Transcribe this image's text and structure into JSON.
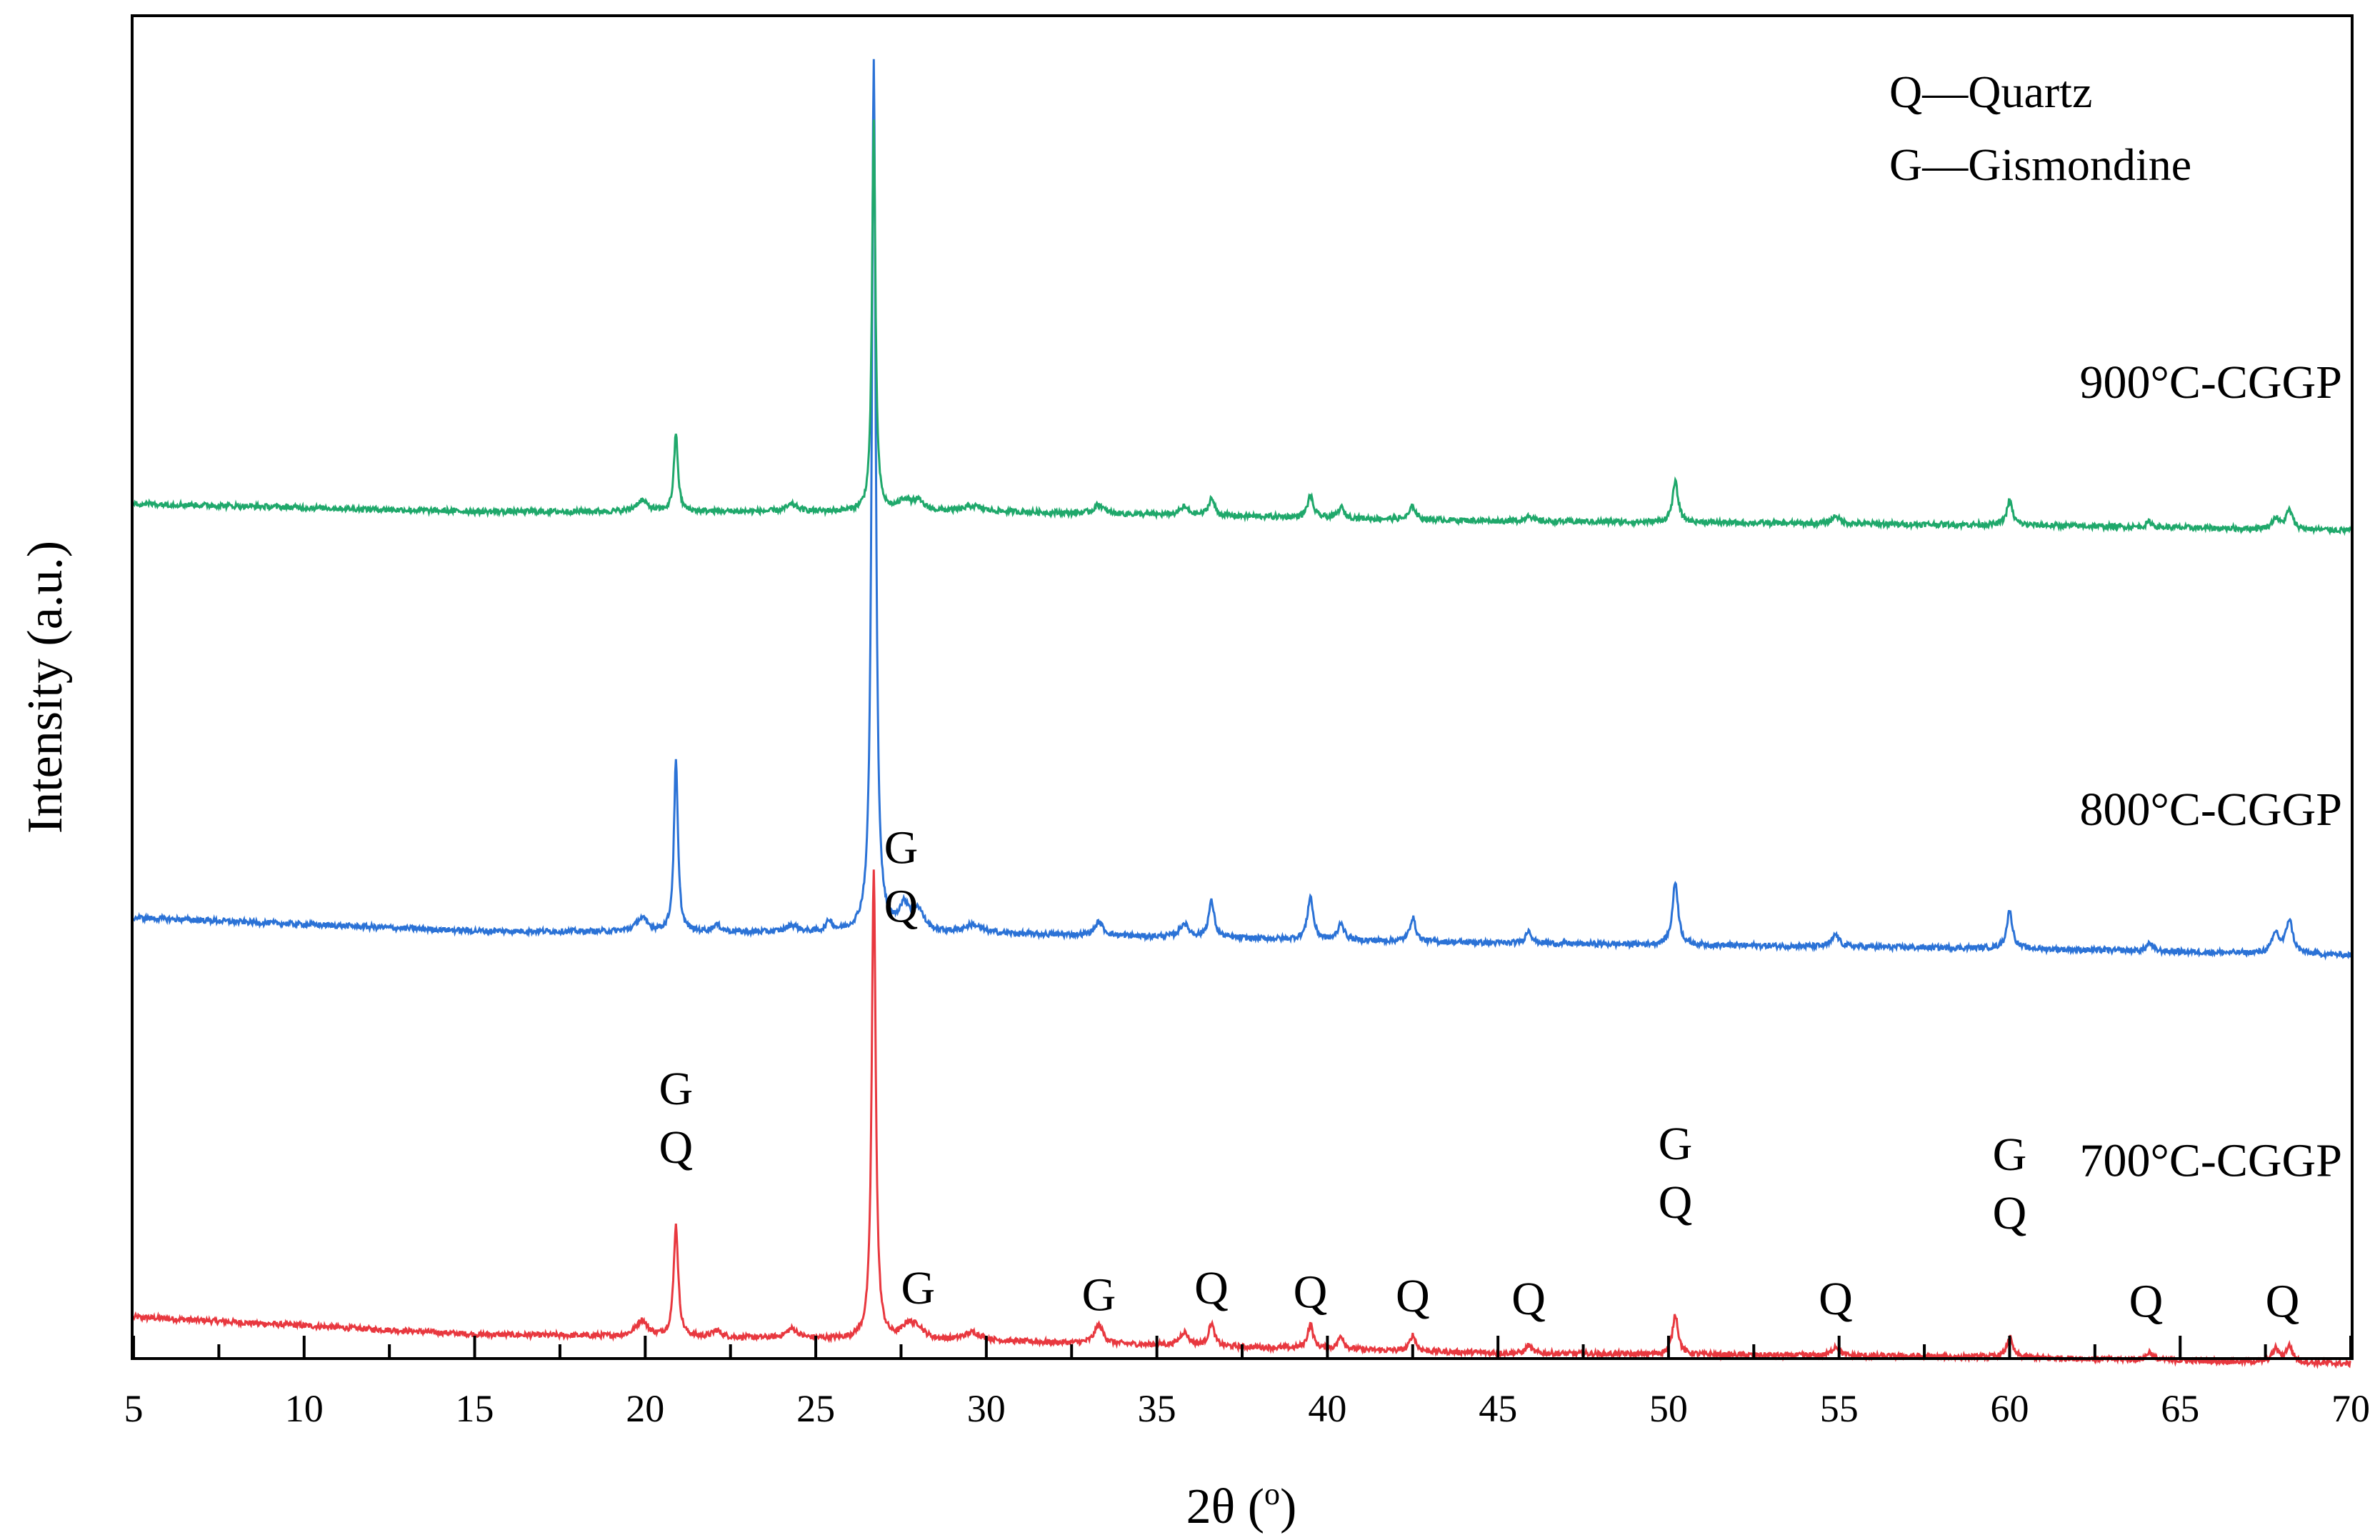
{
  "chart_data": {
    "type": "line",
    "title": "",
    "xlabel": "2θ (",
    "xlabel_sup": "o",
    "xlabel_close": ")",
    "ylabel": "Intensity (a.u.)",
    "xlim": [
      5,
      70
    ],
    "x_ticks": [
      5,
      10,
      15,
      20,
      25,
      30,
      35,
      40,
      45,
      50,
      55,
      60,
      65,
      70
    ],
    "x_tick_labels": [
      "5",
      "10",
      "15",
      "20",
      "25",
      "30",
      "35",
      "40",
      "45",
      "50",
      "55",
      "60",
      "65",
      "70"
    ],
    "y_ticks_shown": false,
    "grid": false,
    "legend": {
      "placement": "top-right",
      "entries": [
        "Q—Quartz",
        "G—Gismondine"
      ]
    },
    "series": [
      {
        "name": "700°C-CGGP",
        "color": "#e8383f",
        "baseline": [
          [
            5,
            0.03
          ],
          [
            15,
            0.017
          ],
          [
            30,
            0.012
          ],
          [
            45,
            0.003
          ],
          [
            60,
            0.0
          ],
          [
            70,
            -0.005
          ]
        ],
        "peaks": [
          [
            19.9,
            0.012,
            0.2
          ],
          [
            20.9,
            0.083,
            0.08
          ],
          [
            22.1,
            0.005,
            0.15
          ],
          [
            24.3,
            0.007,
            0.2
          ],
          [
            26.7,
            0.35,
            0.07
          ],
          [
            27.7,
            0.01,
            0.2
          ],
          [
            28.0,
            0.008,
            0.2
          ],
          [
            29.6,
            0.006,
            0.3
          ],
          [
            33.3,
            0.014,
            0.15
          ],
          [
            35.8,
            0.01,
            0.15
          ],
          [
            36.6,
            0.017,
            0.1
          ],
          [
            39.5,
            0.018,
            0.1
          ],
          [
            40.4,
            0.01,
            0.1
          ],
          [
            42.5,
            0.012,
            0.1
          ],
          [
            45.9,
            0.006,
            0.1
          ],
          [
            50.2,
            0.03,
            0.1
          ],
          [
            54.9,
            0.007,
            0.12
          ],
          [
            60.0,
            0.015,
            0.1
          ],
          [
            64.1,
            0.006,
            0.1
          ],
          [
            67.8,
            0.01,
            0.12
          ],
          [
            68.2,
            0.012,
            0.12
          ]
        ]
      },
      {
        "name": "800°C-CGGP",
        "color": "#2b72d6",
        "baseline": [
          [
            5,
            0.328
          ],
          [
            15,
            0.318
          ],
          [
            30,
            0.316
          ],
          [
            45,
            0.309
          ],
          [
            60,
            0.305
          ],
          [
            70,
            0.3
          ]
        ],
        "peaks": [
          [
            19.9,
            0.01,
            0.2
          ],
          [
            20.9,
            0.127,
            0.07
          ],
          [
            22.1,
            0.005,
            0.15
          ],
          [
            24.3,
            0.005,
            0.2
          ],
          [
            25.4,
            0.008,
            0.1
          ],
          [
            26.7,
            0.65,
            0.07
          ],
          [
            27.6,
            0.018,
            0.2
          ],
          [
            28.0,
            0.015,
            0.2
          ],
          [
            29.6,
            0.006,
            0.3
          ],
          [
            33.3,
            0.01,
            0.15
          ],
          [
            35.8,
            0.01,
            0.15
          ],
          [
            36.6,
            0.027,
            0.1
          ],
          [
            39.5,
            0.032,
            0.1
          ],
          [
            40.4,
            0.013,
            0.1
          ],
          [
            42.5,
            0.018,
            0.1
          ],
          [
            45.9,
            0.01,
            0.1
          ],
          [
            50.2,
            0.047,
            0.1
          ],
          [
            54.9,
            0.009,
            0.12
          ],
          [
            60.0,
            0.028,
            0.1
          ],
          [
            64.1,
            0.006,
            0.1
          ],
          [
            67.8,
            0.015,
            0.12
          ],
          [
            68.2,
            0.025,
            0.12
          ]
        ]
      },
      {
        "name": "900°C-CGGP",
        "color": "#1fa86b",
        "baseline": [
          [
            5,
            0.637
          ],
          [
            15,
            0.631
          ],
          [
            30,
            0.631
          ],
          [
            45,
            0.624
          ],
          [
            60,
            0.621
          ],
          [
            70,
            0.617
          ]
        ],
        "peaks": [
          [
            19.9,
            0.008,
            0.2
          ],
          [
            20.9,
            0.058,
            0.07
          ],
          [
            24.3,
            0.005,
            0.2
          ],
          [
            26.7,
            0.29,
            0.06
          ],
          [
            27.6,
            0.008,
            0.2
          ],
          [
            28.0,
            0.007,
            0.2
          ],
          [
            29.6,
            0.004,
            0.3
          ],
          [
            33.3,
            0.007,
            0.15
          ],
          [
            35.8,
            0.006,
            0.15
          ],
          [
            36.6,
            0.013,
            0.1
          ],
          [
            39.5,
            0.016,
            0.1
          ],
          [
            40.4,
            0.008,
            0.1
          ],
          [
            42.5,
            0.01,
            0.1
          ],
          [
            45.9,
            0.005,
            0.1
          ],
          [
            50.2,
            0.03,
            0.1
          ],
          [
            54.9,
            0.006,
            0.12
          ],
          [
            60.0,
            0.018,
            0.1
          ],
          [
            64.1,
            0.004,
            0.1
          ],
          [
            67.8,
            0.008,
            0.12
          ],
          [
            68.2,
            0.014,
            0.12
          ]
        ]
      }
    ],
    "peak_annotations": [
      {
        "x": 20.9,
        "y": 0.145,
        "lines": [
          "G",
          "Q"
        ]
      },
      {
        "x": 27.5,
        "y": 0.325,
        "lines": [
          "G",
          "Q"
        ]
      },
      {
        "x": 28.0,
        "y": 0.04,
        "lines": [
          "G"
        ]
      },
      {
        "x": 33.3,
        "y": 0.035,
        "lines": [
          "G"
        ]
      },
      {
        "x": 36.6,
        "y": 0.04,
        "lines": [
          "Q"
        ]
      },
      {
        "x": 39.5,
        "y": 0.037,
        "lines": [
          "Q"
        ]
      },
      {
        "x": 42.5,
        "y": 0.034,
        "lines": [
          "Q"
        ]
      },
      {
        "x": 45.9,
        "y": 0.032,
        "lines": [
          "Q"
        ]
      },
      {
        "x": 50.2,
        "y": 0.104,
        "lines": [
          "G",
          "Q"
        ]
      },
      {
        "x": 54.9,
        "y": 0.032,
        "lines": [
          "Q"
        ]
      },
      {
        "x": 60.0,
        "y": 0.096,
        "lines": [
          "G",
          "Q"
        ]
      },
      {
        "x": 64.0,
        "y": 0.03,
        "lines": [
          "Q"
        ]
      },
      {
        "x": 68.0,
        "y": 0.03,
        "lines": [
          "Q"
        ]
      }
    ],
    "series_label_positions": [
      {
        "name": "700°C-CGGP",
        "x": 65.9,
        "y": 0.135
      },
      {
        "name": "800°C-CGGP",
        "x": 65.9,
        "y": 0.397
      },
      {
        "name": "900°C-CGGP",
        "x": 65.9,
        "y": 0.716
      }
    ]
  }
}
